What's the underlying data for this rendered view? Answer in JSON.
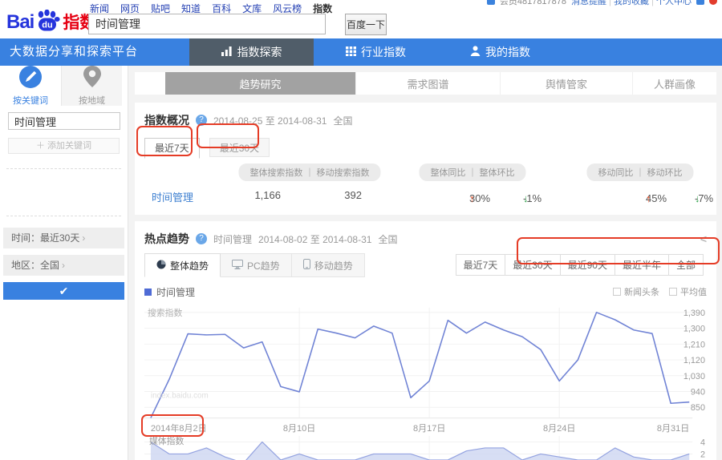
{
  "header": {
    "nav_links": [
      "新闻",
      "网页",
      "贴吧",
      "知道",
      "百科",
      "文库",
      "风云榜",
      "指数"
    ],
    "logo_bai": "Bai",
    "logo_du": "du",
    "logo_suffix": "指数",
    "search_value": "时间管理",
    "search_button": "百度一下",
    "account_user": "会员4817817878",
    "account_links": [
      "消息提醒",
      "我的收藏",
      "个人中心"
    ]
  },
  "bluebar": {
    "slogan": "大数据分享和探索平台",
    "tabs": [
      {
        "label": "指数探索",
        "icon": "bar-chart-icon",
        "active": true
      },
      {
        "label": "行业指数",
        "icon": "grid-icon",
        "active": false
      },
      {
        "label": "我的指数",
        "icon": "person-icon",
        "active": false
      }
    ]
  },
  "sidebar": {
    "tabs": [
      {
        "label": "按关键词",
        "icon": "pencil-circle-icon",
        "active": true
      },
      {
        "label": "按地域",
        "icon": "map-pin-icon",
        "active": false
      }
    ],
    "keyword": "时间管理",
    "add_button": "＋ 添加关键词",
    "time_row": "时间：最近30天",
    "region_row": "地区：全国",
    "confirm_icon": "✔"
  },
  "content_tabs": [
    {
      "label": "趋势研究",
      "active": true
    },
    {
      "label": "需求图谱",
      "active": false
    },
    {
      "label": "舆情管家",
      "active": false
    },
    {
      "label": "人群画像",
      "active": false
    }
  ],
  "overview": {
    "title": "指数概况",
    "date_range": "2014-08-25 至 2014-08-31",
    "region": "全国",
    "range_tabs": [
      {
        "label": "最近7天",
        "active": true
      },
      {
        "label": "最近30天",
        "active": false
      }
    ],
    "pills": [
      "整体搜索指数 ｜ 移动搜索指数",
      "整体同比 ｜ 整体环比",
      "移动同比 ｜ 移动环比"
    ],
    "row": {
      "keyword": "时间管理",
      "overall_index": "1,166",
      "mobile_index": "392",
      "overall_yoy": "30%",
      "overall_yoy_dir": "up",
      "overall_mom": "-1%",
      "overall_mom_dir": "down",
      "mobile_yoy": "45%",
      "mobile_yoy_dir": "up",
      "mobile_mom": "-7%",
      "mobile_mom_dir": "down"
    }
  },
  "trend": {
    "title": "热点趋势",
    "keyword": "时间管理",
    "date_range": "2014-08-02 至 2014-08-31",
    "region": "全国",
    "tabs": [
      {
        "label": "整体趋势",
        "icon": "pie-icon",
        "active": true
      },
      {
        "label": "PC趋势",
        "icon": "monitor-icon",
        "active": false
      },
      {
        "label": "移动趋势",
        "icon": "mobile-icon",
        "active": false
      }
    ],
    "range_buttons": [
      "最近7天",
      "最近30天",
      "最近90天",
      "最近半年",
      "全部"
    ],
    "legend_label": "时间管理",
    "checkboxes": [
      "新闻头条",
      "平均值"
    ],
    "search_index_label": "搜索指数",
    "media_index_label": "媒体指数",
    "watermark": "index.baidu.com"
  },
  "colors": {
    "brand_blue": "#3981e0",
    "logo_red": "#e60012",
    "line_blue": "#7083d5",
    "area_fill": "#cdd6f1",
    "up_red": "#f04e23",
    "down_green": "#2ea24a",
    "annotation_red": "#e53c26"
  },
  "chart_data": [
    {
      "type": "line",
      "title": "热点趋势 - 搜索指数",
      "x_range": [
        "2014-08-02",
        "2014-08-31"
      ],
      "points": 30,
      "x_tick_labels": [
        "2014年8月2日",
        "8月10日",
        "8月17日",
        "8月24日",
        "8月31日"
      ],
      "x_tick_days": [
        1,
        9,
        16,
        23,
        30
      ],
      "y_ticks": [
        "1,390",
        "1,300",
        "1,210",
        "1,120",
        "1,030",
        "940",
        "850"
      ],
      "y_tick_values": [
        1390,
        1300,
        1210,
        1120,
        1030,
        940,
        850
      ],
      "ylim": [
        780,
        1410
      ],
      "grid": true,
      "legend_position": "top-left",
      "series": [
        {
          "name": "时间管理",
          "color": "#7083d5",
          "values": [
            790,
            1010,
            1268,
            1262,
            1265,
            1188,
            1222,
            968,
            938,
            1295,
            1272,
            1245,
            1312,
            1272,
            905,
            1000,
            1345,
            1272,
            1335,
            1290,
            1252,
            1178,
            1000,
            1120,
            1390,
            1348,
            1290,
            1270,
            873,
            880
          ]
        }
      ]
    },
    {
      "type": "area",
      "title": "媒体指数",
      "x_range": [
        "2014-08-02",
        "2014-08-31"
      ],
      "points": 30,
      "y_ticks": [
        "4",
        "2"
      ],
      "y_tick_values": [
        4,
        2
      ],
      "ylim": [
        0,
        4.6
      ],
      "grid": true,
      "series": [
        {
          "name": "媒体指数",
          "color": "#93a2e0",
          "fill": "#cdd6f1",
          "values": [
            4,
            2,
            2,
            3,
            1.5,
            0.5,
            4,
            1,
            2,
            1,
            1,
            1,
            2,
            2,
            2,
            1,
            1,
            2.5,
            3,
            3,
            1,
            2,
            1.5,
            1,
            1,
            3,
            1.5,
            1,
            1,
            2
          ]
        }
      ]
    }
  ]
}
